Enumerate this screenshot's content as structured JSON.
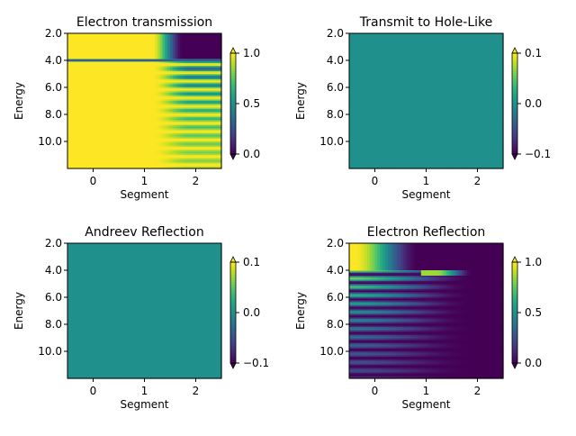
{
  "chart_data": [
    {
      "type": "heatmap",
      "title": "Electron transmission",
      "xlabel": "Segment",
      "ylabel": "Energy",
      "x_ticks": [
        "0",
        "1",
        "2"
      ],
      "y_ticks": [
        "2.0",
        "4.0",
        "6.0",
        "8.0",
        "10.0"
      ],
      "xlim": [
        -0.5,
        2.5
      ],
      "ylim": [
        12,
        2
      ],
      "colorbar": {
        "ticks": [
          "0.0",
          "0.5",
          "1.0"
        ],
        "range": [
          0,
          1
        ],
        "colormap": "viridis",
        "extend": "both"
      },
      "pattern": "transmission",
      "step_energy": 4.0
    },
    {
      "type": "heatmap",
      "title": "Transmit to Hole-Like",
      "xlabel": "Segment",
      "ylabel": "Energy",
      "x_ticks": [
        "0",
        "1",
        "2"
      ],
      "y_ticks": [
        "2.0",
        "4.0",
        "6.0",
        "8.0",
        "10.0"
      ],
      "xlim": [
        -0.5,
        2.5
      ],
      "ylim": [
        12,
        2
      ],
      "colorbar": {
        "ticks": [
          "−0.1",
          "0.0",
          "0.1"
        ],
        "range": [
          -0.1,
          0.1
        ],
        "colormap": "viridis",
        "extend": "both"
      },
      "pattern": "constant",
      "constant_value": 0.0
    },
    {
      "type": "heatmap",
      "title": "Andreev Reflection",
      "xlabel": "Segment",
      "ylabel": "Energy",
      "x_ticks": [
        "0",
        "1",
        "2"
      ],
      "y_ticks": [
        "2.0",
        "4.0",
        "6.0",
        "8.0",
        "10.0"
      ],
      "xlim": [
        -0.5,
        2.5
      ],
      "ylim": [
        12,
        2
      ],
      "colorbar": {
        "ticks": [
          "−0.1",
          "0.0",
          "0.1"
        ],
        "range": [
          -0.1,
          0.1
        ],
        "colormap": "viridis",
        "extend": "both"
      },
      "pattern": "constant",
      "constant_value": 0.0
    },
    {
      "type": "heatmap",
      "title": "Electron Reflection",
      "xlabel": "Segment",
      "ylabel": "Energy",
      "x_ticks": [
        "0",
        "1",
        "2"
      ],
      "y_ticks": [
        "2.0",
        "4.0",
        "6.0",
        "8.0",
        "10.0"
      ],
      "xlim": [
        -0.5,
        2.5
      ],
      "ylim": [
        12,
        2
      ],
      "colorbar": {
        "ticks": [
          "0.0",
          "0.5",
          "1.0"
        ],
        "range": [
          0,
          1
        ],
        "colormap": "viridis",
        "extend": "both"
      },
      "pattern": "reflection",
      "step_energy": 4.0
    }
  ]
}
